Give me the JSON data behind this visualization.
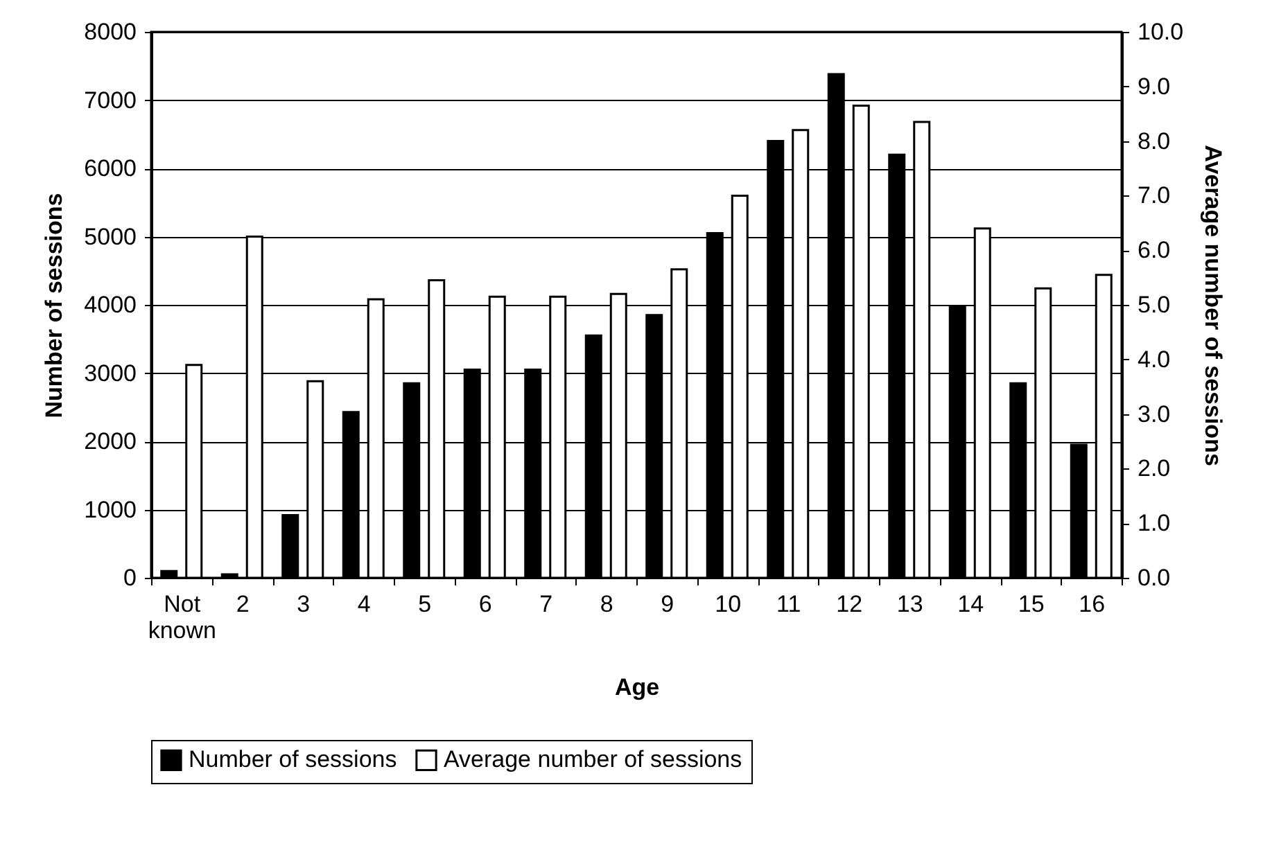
{
  "chart_data": {
    "type": "bar",
    "xlabel": "Age",
    "ylabel": "Number of sessions",
    "y2label": "Average number of sessions",
    "categories": [
      "Not known",
      "2",
      "3",
      "4",
      "5",
      "6",
      "7",
      "8",
      "9",
      "10",
      "11",
      "12",
      "13",
      "14",
      "15",
      "16"
    ],
    "series": [
      {
        "name": "Number of sessions",
        "color": "#000000",
        "values": [
          100,
          50,
          920,
          2430,
          2850,
          3050,
          3050,
          3550,
          3850,
          5050,
          6400,
          7380,
          6200,
          3980,
          2850,
          1950
        ]
      },
      {
        "name": "Average number of sessions",
        "color": "#ffffff",
        "axis": "y2",
        "values": [
          3.9,
          6.25,
          3.6,
          5.1,
          5.45,
          5.15,
          5.15,
          5.2,
          5.65,
          7.0,
          8.2,
          8.65,
          8.35,
          6.4,
          5.3,
          5.55
        ]
      }
    ],
    "ylim": [
      0,
      8000
    ],
    "yticks": [
      0,
      1000,
      2000,
      3000,
      4000,
      5000,
      6000,
      7000,
      8000
    ],
    "y2lim": [
      0,
      10
    ],
    "y2ticks": [
      {
        "value": 0,
        "label": "0.0"
      },
      {
        "value": 1,
        "label": "1.0"
      },
      {
        "value": 2,
        "label": "2.0"
      },
      {
        "value": 3,
        "label": "3.0"
      },
      {
        "value": 4,
        "label": "4.0"
      },
      {
        "value": 5,
        "label": "5.0"
      },
      {
        "value": 6,
        "label": "6.0"
      },
      {
        "value": 7,
        "label": "7.0"
      },
      {
        "value": 8,
        "label": "8.0"
      },
      {
        "value": 9,
        "label": "9.0"
      },
      {
        "value": 10,
        "label": "10.0"
      }
    ],
    "grid": "y",
    "legend": "bottom"
  }
}
